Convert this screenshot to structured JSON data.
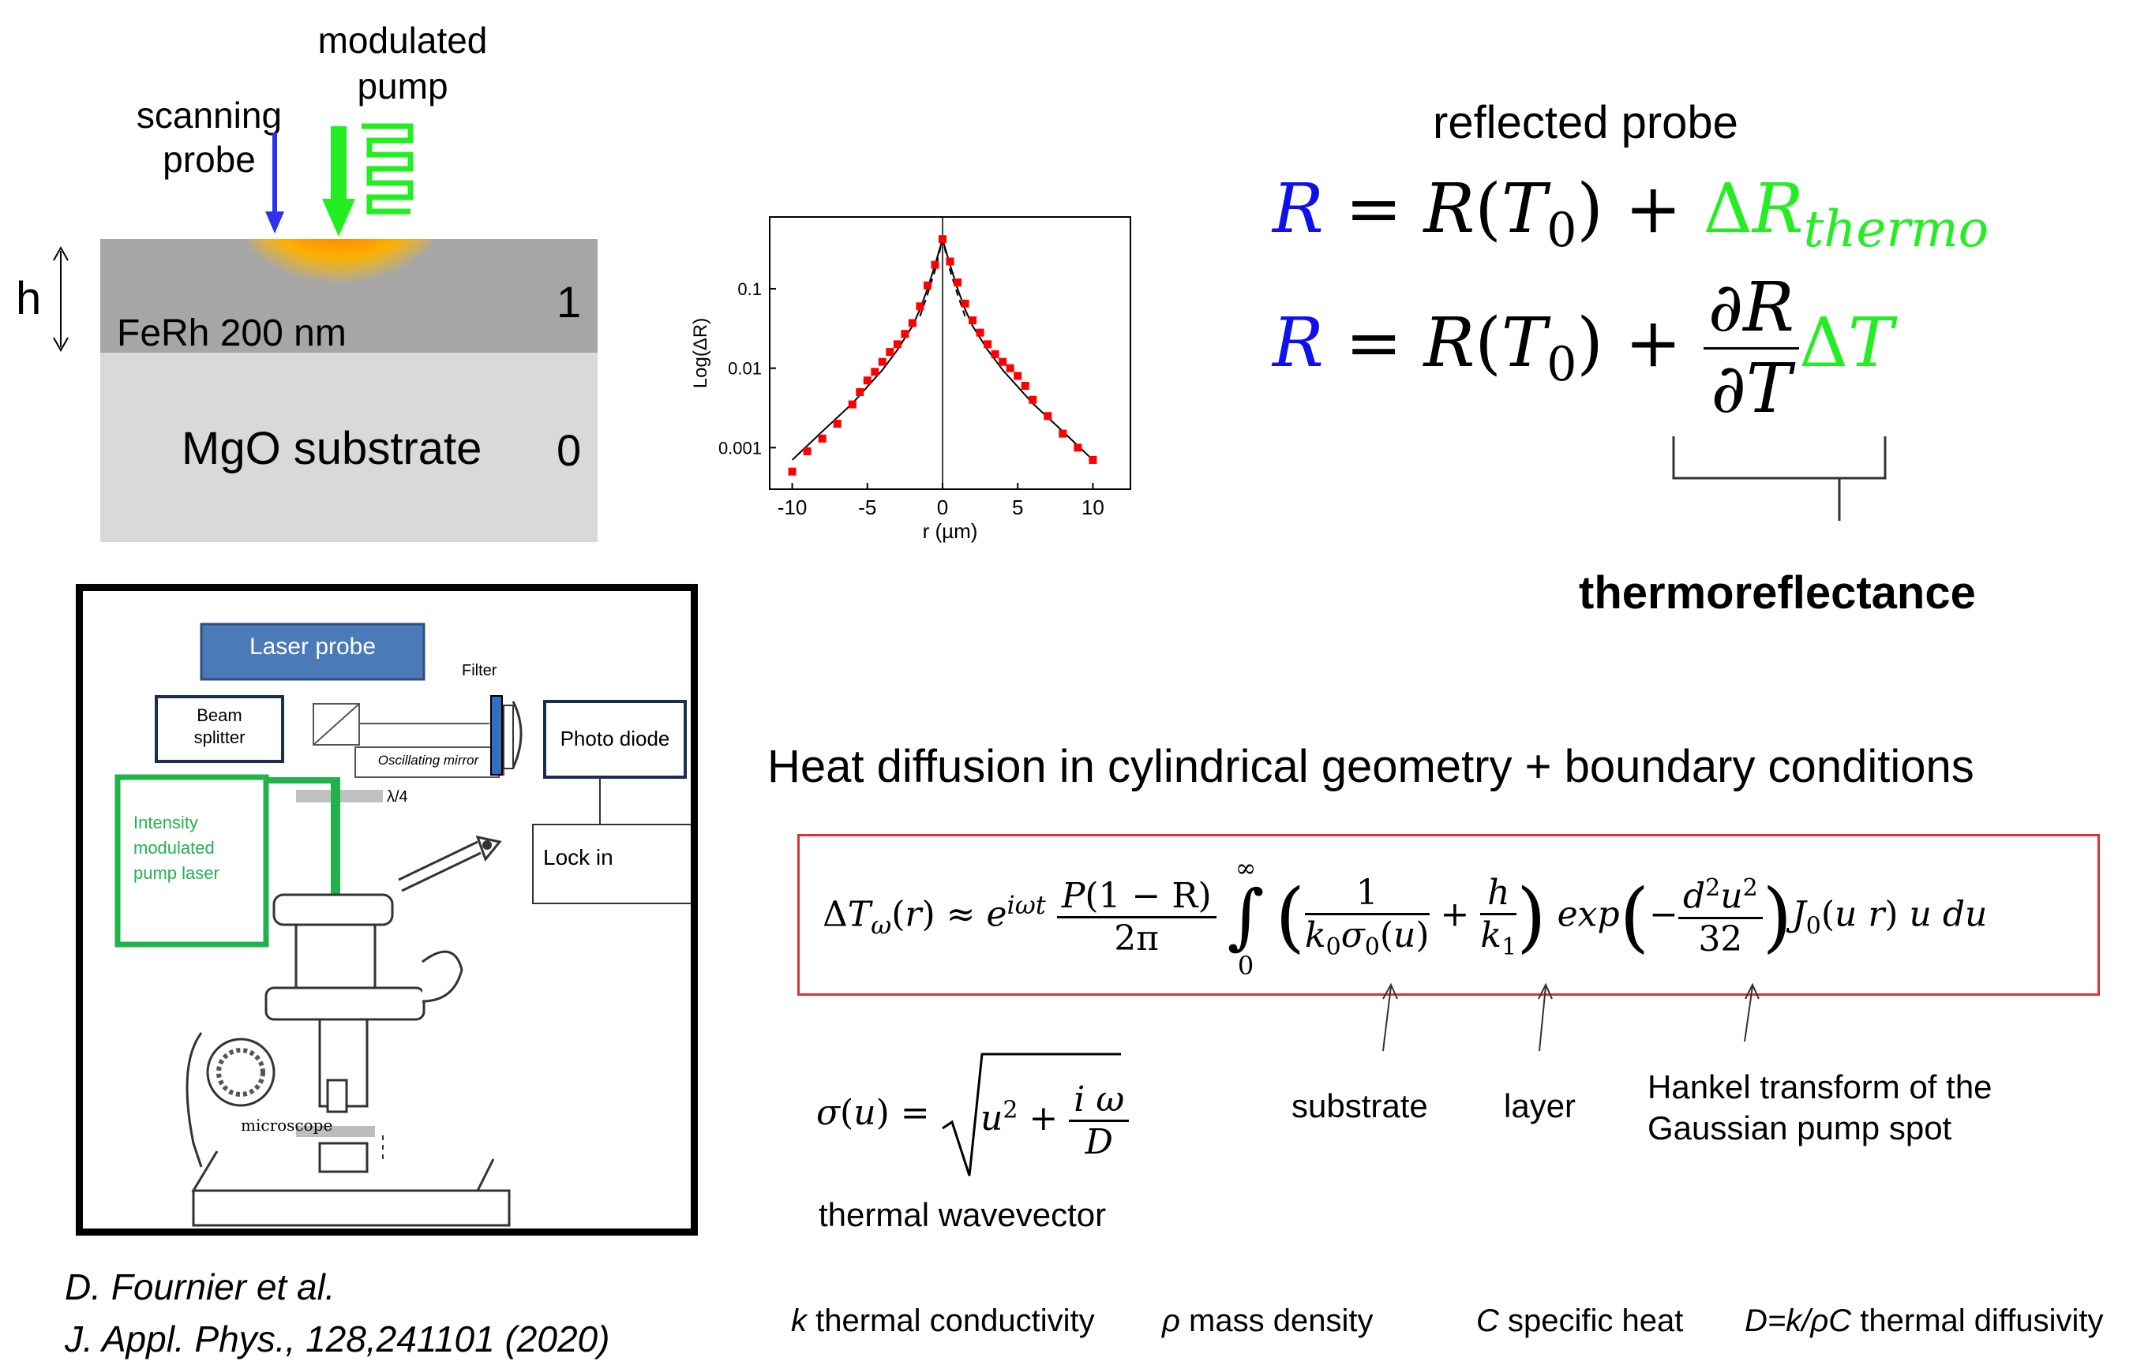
{
  "sample": {
    "modulated_pump": [
      "modulated",
      "pump"
    ],
    "scanning_probe": [
      "scanning",
      "probe"
    ],
    "h": "h",
    "layer_label": "FeRh 200 nm",
    "layer_index": "1",
    "substrate_label": "MgO substrate",
    "substrate_index": "0"
  },
  "setup": {
    "laser_probe": "Laser probe",
    "filter": "Filter",
    "beam_splitter": [
      "Beam",
      "splitter"
    ],
    "oscillating_mirror": "Oscillating mirror",
    "photo_diode": "Photo diode",
    "lambda4": "λ/4",
    "pump_laser": [
      "Intensity",
      "modulated",
      "pump laser"
    ],
    "lock_in": "Lock in",
    "microscope": "microscope"
  },
  "chart_data": {
    "type": "scatter",
    "xlabel": "r (µm)",
    "ylabel": "Log(ΔR)",
    "yscale": "log",
    "xlim": [
      -11.5,
      12.5
    ],
    "ylim": [
      0.0003,
      0.8
    ],
    "xticks": [
      -10,
      -5,
      0,
      5,
      10
    ],
    "xtick_labels": [
      "-10",
      "-5",
      "0",
      "5",
      "10"
    ],
    "yticks": [
      0.001,
      0.01,
      0.1
    ],
    "ytick_labels": [
      "0.001",
      "0.01",
      "0.1"
    ],
    "series": [
      {
        "kind": "points",
        "color": "#ff0000",
        "x": [
          -10,
          -9,
          -8,
          -7,
          -6,
          -5.5,
          -5,
          -4.5,
          -4,
          -3.5,
          -3,
          -2.5,
          -2,
          -1.5,
          -1,
          -0.5,
          0,
          0.5,
          1,
          1.5,
          2,
          2.5,
          3,
          3.5,
          4,
          4.5,
          5,
          5.5,
          6,
          7,
          8,
          9,
          10
        ],
        "y": [
          0.0005,
          0.0009,
          0.0013,
          0.002,
          0.0035,
          0.005,
          0.007,
          0.009,
          0.012,
          0.016,
          0.02,
          0.027,
          0.037,
          0.06,
          0.11,
          0.2,
          0.42,
          0.22,
          0.12,
          0.065,
          0.04,
          0.028,
          0.02,
          0.015,
          0.012,
          0.01,
          0.008,
          0.006,
          0.004,
          0.0025,
          0.0015,
          0.001,
          0.0007
        ]
      },
      {
        "kind": "fit",
        "color": "#000000",
        "style": "solid",
        "x": [
          -10,
          -8,
          -6,
          -4,
          -3,
          -2,
          -1.5,
          -1,
          -0.5,
          0,
          0.5,
          1,
          1.5,
          2,
          3,
          4,
          6,
          8,
          10
        ],
        "y": [
          0.0007,
          0.0016,
          0.0036,
          0.0095,
          0.017,
          0.034,
          0.055,
          0.1,
          0.2,
          0.42,
          0.2,
          0.1,
          0.055,
          0.034,
          0.017,
          0.0095,
          0.0036,
          0.0016,
          0.0007
        ]
      },
      {
        "kind": "fit",
        "color": "#000000",
        "style": "dashed",
        "x": [
          -1.5,
          -1,
          -0.5,
          0,
          0.5,
          1,
          1.5
        ],
        "y": [
          0.045,
          0.085,
          0.17,
          0.42,
          0.17,
          0.085,
          0.045
        ]
      }
    ]
  },
  "right": {
    "reflected_probe": "reflected probe",
    "thermoreflectance": "thermoreflectance",
    "heat_title": "Heat diffusion in cylindrical geometry + boundary conditions",
    "substrate": "substrate",
    "layer": "layer",
    "hankel": [
      "Hankel transform of the",
      "Gaussian pump spot"
    ],
    "thermal_wavevector": "thermal wavevector"
  },
  "citation": [
    "D. Fournier et al.",
    "J. Appl. Phys., 128,241101 (2020)"
  ],
  "legend": {
    "k": [
      "k",
      " thermal conductivity"
    ],
    "rho": [
      "ρ",
      " mass density"
    ],
    "c": [
      "C",
      " specific heat"
    ],
    "d": [
      "D=k/ρC",
      " thermal diffusivity"
    ]
  },
  "colors": {
    "blue": "#1010ee",
    "green": "#22ee22",
    "red": "#ff0000",
    "frame": "#e03030"
  }
}
